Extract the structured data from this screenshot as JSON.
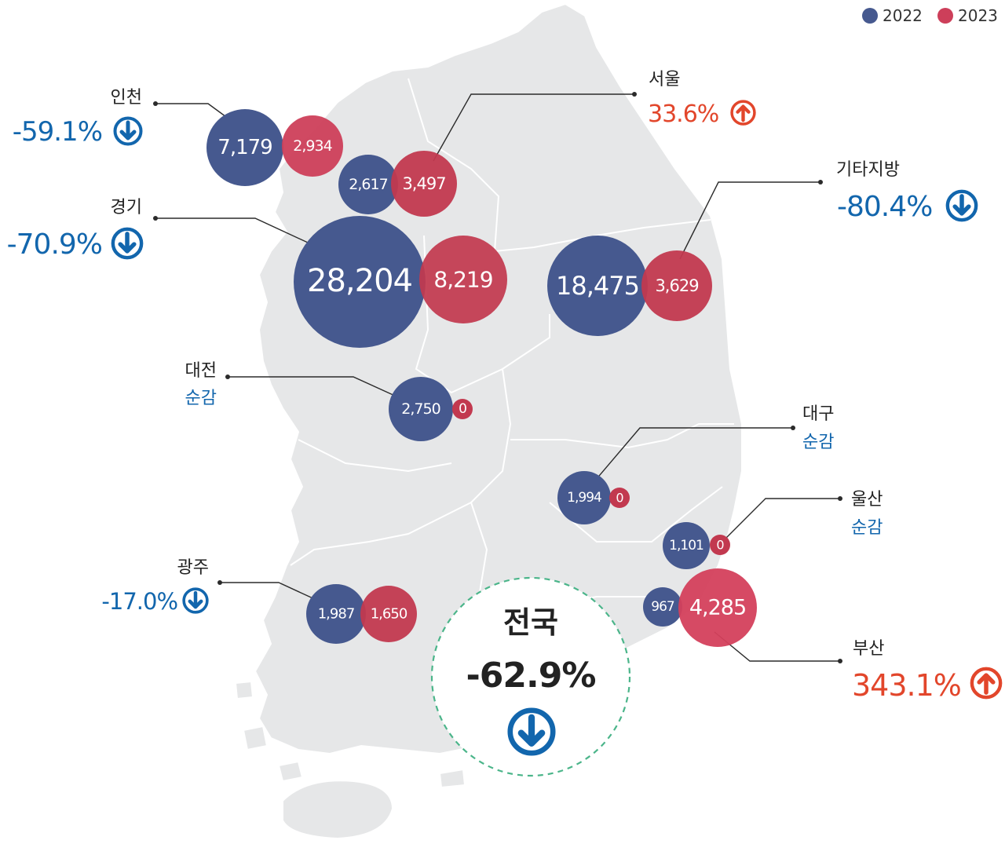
{
  "legend": [
    {
      "label": "2022",
      "color": "#46598f"
    },
    {
      "label": "2023",
      "color": "#cd3f5a"
    }
  ],
  "colors": {
    "map_land": "#e6e7e8",
    "map_border": "#ffffff",
    "decrease": "#1266ad",
    "increase": "#e2462b",
    "national_ring": "#4bb58a"
  },
  "regions": [
    {
      "id": "incheon",
      "name": "인천",
      "v2022": "7,179",
      "v2023": "2,934",
      "change": "-59.1%",
      "direction": "down",
      "icon": "arrow-down-circle-icon"
    },
    {
      "id": "seoul",
      "name": "서울",
      "v2022": "2,617",
      "v2023": "3,497",
      "change": "33.6%",
      "direction": "up",
      "icon": "arrow-up-circle-icon"
    },
    {
      "id": "gyeonggi",
      "name": "경기",
      "v2022": "28,204",
      "v2023": "8,219",
      "change": "-70.9%",
      "direction": "down",
      "icon": "arrow-down-circle-icon"
    },
    {
      "id": "other",
      "name": "기타지방",
      "v2022": "18,475",
      "v2023": "3,629",
      "change": "-80.4%",
      "direction": "down",
      "icon": "arrow-down-circle-icon"
    },
    {
      "id": "daejeon",
      "name": "대전",
      "v2022": "2,750",
      "v2023": "0",
      "change": "순감",
      "direction": "down"
    },
    {
      "id": "daegu",
      "name": "대구",
      "v2022": "1,994",
      "v2023": "0",
      "change": "순감",
      "direction": "down"
    },
    {
      "id": "ulsan",
      "name": "울산",
      "v2022": "1,101",
      "v2023": "0",
      "change": "순감",
      "direction": "down"
    },
    {
      "id": "gwangju",
      "name": "광주",
      "v2022": "1,987",
      "v2023": "1,650",
      "change": "-17.0%",
      "direction": "down",
      "icon": "arrow-down-circle-icon"
    },
    {
      "id": "busan",
      "name": "부산",
      "v2022": "967",
      "v2023": "4,285",
      "change": "343.1%",
      "direction": "up",
      "icon": "arrow-up-circle-icon"
    }
  ],
  "national": {
    "label": "전국",
    "change": "-62.9%",
    "icon": "arrow-down-circle-icon"
  }
}
